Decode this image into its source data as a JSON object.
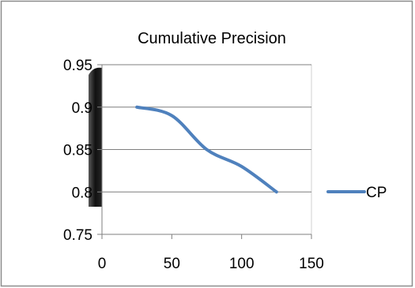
{
  "chart_data": {
    "type": "line",
    "title": "Cumulative Precision",
    "xlabel": "",
    "ylabel": "",
    "xlim": [
      0,
      150
    ],
    "ylim": [
      0.75,
      0.95
    ],
    "x_ticks": [
      0,
      50,
      100,
      150
    ],
    "y_ticks": [
      0.75,
      0.8,
      0.85,
      0.9,
      0.95
    ],
    "x_tick_labels": [
      "0",
      "50",
      "100",
      "150"
    ],
    "y_tick_labels": [
      "0.75",
      "0.8",
      "0.85",
      "0.9",
      "0.95"
    ],
    "grid": "horizontal",
    "smooth": true,
    "legend_position": "right",
    "series": [
      {
        "name": "CP",
        "color": "#4f81bd",
        "x": [
          25,
          50,
          75,
          100,
          125
        ],
        "y": [
          0.9,
          0.89,
          0.85,
          0.83,
          0.8
        ]
      }
    ]
  }
}
